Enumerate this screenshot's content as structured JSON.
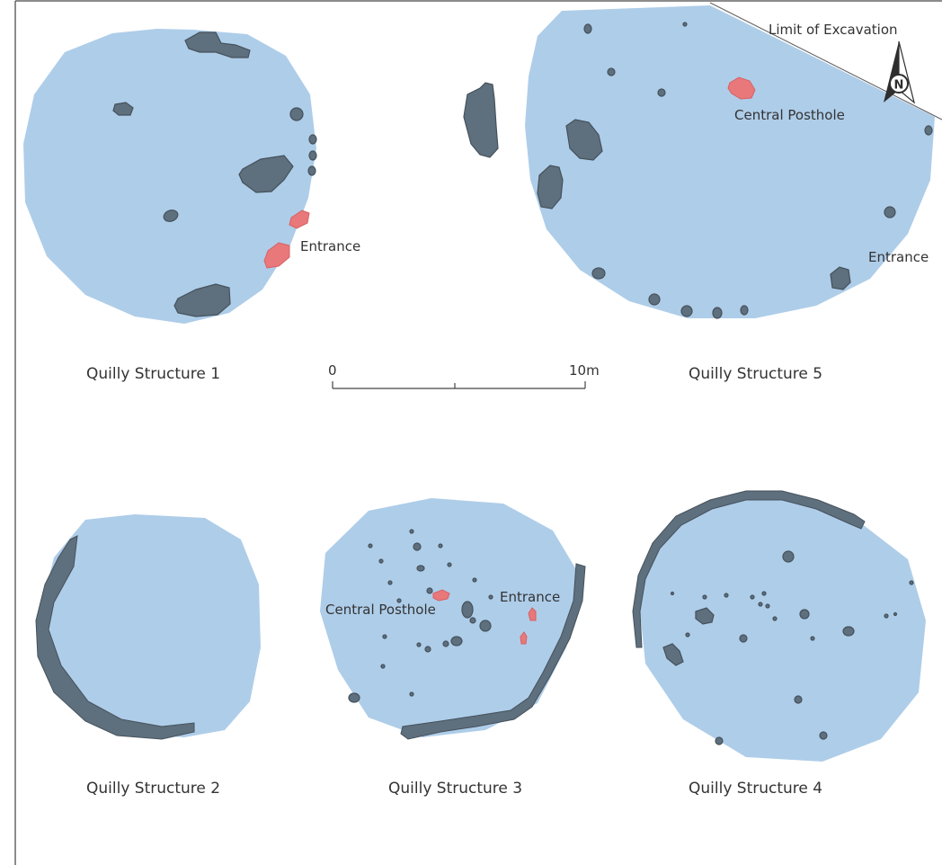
{
  "figure": {
    "structures": [
      {
        "caption": "Quilly Structure 1",
        "labels": [
          "Entrance"
        ]
      },
      {
        "caption": "Quilly Structure 5",
        "labels": [
          "Central Posthole",
          "Entrance",
          "Limit of Excavation"
        ]
      },
      {
        "caption": "Quilly Structure 2",
        "labels": []
      },
      {
        "caption": "Quilly Structure 3",
        "labels": [
          "Central Posthole",
          "Entrance"
        ]
      },
      {
        "caption": "Quilly Structure 4",
        "labels": []
      }
    ],
    "labels": {
      "s1_entrance": "Entrance",
      "s5_central_posthole": "Central Posthole",
      "s5_entrance": "Entrance",
      "s5_limit": "Limit of Excavation",
      "s3_central_posthole": "Central Posthole",
      "s3_entrance": "Entrance"
    },
    "captions": {
      "s1": "Quilly Structure 1",
      "s5": "Quilly Structure 5",
      "s2": "Quilly Structure 2",
      "s3": "Quilly Structure 3",
      "s4": "Quilly Structure 4"
    },
    "scale_bar": {
      "start_label": "0",
      "end_label": "10m"
    },
    "north_arrow": {
      "letter": "N"
    },
    "colors": {
      "structure_fill": "#aecde9",
      "feature": "#5e6f7d",
      "posthole_highlight": "#e8787a",
      "frame": "#555555",
      "text": "#333333"
    },
    "icons": [
      "north-arrow-icon"
    ]
  }
}
